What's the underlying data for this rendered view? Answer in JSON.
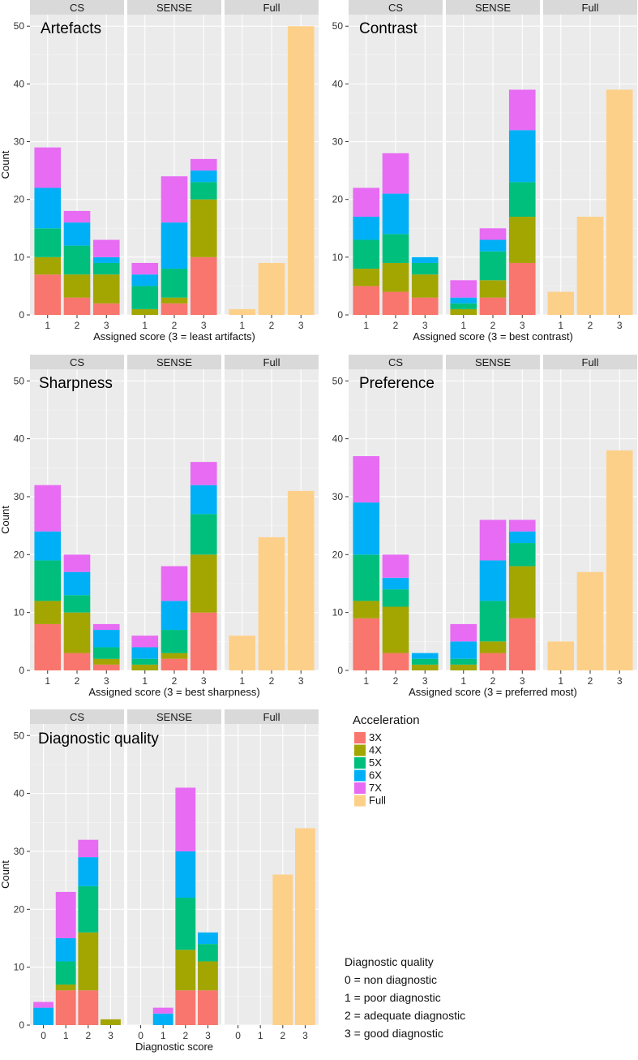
{
  "acceleration_colors": {
    "3X": "#F8766D",
    "4X": "#A3A500",
    "5X": "#00BF7D",
    "6X": "#00B0F6",
    "7X": "#E76BF3",
    "Full": "#FDD08A"
  },
  "legend": {
    "title": "Acceleration",
    "items": [
      "3X",
      "4X",
      "5X",
      "6X",
      "7X",
      "Full"
    ]
  },
  "diagnostic_note": {
    "title": "Diagnostic quality",
    "lines": [
      "0 = non diagnostic",
      "1 = poor diagnostic",
      "2 = adequate diagnostic",
      "3 = good diagnostic"
    ]
  },
  "chart_data": [
    {
      "type": "bar",
      "stacked": true,
      "title": "Artefacts",
      "xlabel": "Assigned score (3 = least artifacts)",
      "ylabel": "Count",
      "ylim": [
        0,
        52
      ],
      "yticks": [
        0,
        10,
        20,
        30,
        40,
        50
      ],
      "stack_order": [
        "3X",
        "4X",
        "5X",
        "6X",
        "7X",
        "Full"
      ],
      "facets": [
        {
          "label": "CS",
          "categories": [
            "1",
            "2",
            "3"
          ],
          "series": {
            "3X": [
              7,
              3,
              2
            ],
            "4X": [
              3,
              4,
              5
            ],
            "5X": [
              5,
              5,
              2
            ],
            "6X": [
              7,
              4,
              1
            ],
            "7X": [
              7,
              2,
              3
            ],
            "Full": [
              0,
              0,
              0
            ]
          }
        },
        {
          "label": "SENSE",
          "categories": [
            "1",
            "2",
            "3"
          ],
          "series": {
            "3X": [
              0,
              2,
              10
            ],
            "4X": [
              1,
              1,
              10
            ],
            "5X": [
              4,
              5,
              3
            ],
            "6X": [
              2,
              8,
              2
            ],
            "7X": [
              2,
              8,
              2
            ],
            "Full": [
              0,
              0,
              0
            ]
          }
        },
        {
          "label": "Full",
          "categories": [
            "1",
            "2",
            "3"
          ],
          "series": {
            "3X": [
              0,
              0,
              0
            ],
            "4X": [
              0,
              0,
              0
            ],
            "5X": [
              0,
              0,
              0
            ],
            "6X": [
              0,
              0,
              0
            ],
            "7X": [
              0,
              0,
              0
            ],
            "Full": [
              1,
              9,
              50
            ]
          }
        }
      ]
    },
    {
      "type": "bar",
      "stacked": true,
      "title": "Contrast",
      "xlabel": "Assigned score (3 = best contrast)",
      "ylabel": "",
      "ylim": [
        0,
        52
      ],
      "yticks": [
        0,
        10,
        20,
        30,
        40,
        50
      ],
      "stack_order": [
        "3X",
        "4X",
        "5X",
        "6X",
        "7X",
        "Full"
      ],
      "facets": [
        {
          "label": "CS",
          "categories": [
            "1",
            "2",
            "3"
          ],
          "series": {
            "3X": [
              5,
              4,
              3
            ],
            "4X": [
              3,
              5,
              4
            ],
            "5X": [
              5,
              5,
              2
            ],
            "6X": [
              4,
              7,
              1
            ],
            "7X": [
              5,
              7,
              0
            ],
            "Full": [
              0,
              0,
              0
            ]
          }
        },
        {
          "label": "SENSE",
          "categories": [
            "1",
            "2",
            "3"
          ],
          "series": {
            "3X": [
              0,
              3,
              9
            ],
            "4X": [
              1,
              3,
              8
            ],
            "5X": [
              1,
              5,
              6
            ],
            "6X": [
              1,
              2,
              9
            ],
            "7X": [
              3,
              2,
              7
            ],
            "Full": [
              0,
              0,
              0
            ]
          }
        },
        {
          "label": "Full",
          "categories": [
            "1",
            "2",
            "3"
          ],
          "series": {
            "3X": [
              0,
              0,
              0
            ],
            "4X": [
              0,
              0,
              0
            ],
            "5X": [
              0,
              0,
              0
            ],
            "6X": [
              0,
              0,
              0
            ],
            "7X": [
              0,
              0,
              0
            ],
            "Full": [
              4,
              17,
              39
            ]
          }
        }
      ]
    },
    {
      "type": "bar",
      "stacked": true,
      "title": "Sharpness",
      "xlabel": "Assigned score (3 = best sharpness)",
      "ylabel": "Count",
      "ylim": [
        0,
        52
      ],
      "yticks": [
        0,
        10,
        20,
        30,
        40,
        50
      ],
      "stack_order": [
        "3X",
        "4X",
        "5X",
        "6X",
        "7X",
        "Full"
      ],
      "facets": [
        {
          "label": "CS",
          "categories": [
            "1",
            "2",
            "3"
          ],
          "series": {
            "3X": [
              8,
              3,
              1
            ],
            "4X": [
              4,
              7,
              1
            ],
            "5X": [
              7,
              3,
              2
            ],
            "6X": [
              5,
              4,
              3
            ],
            "7X": [
              8,
              3,
              1
            ],
            "Full": [
              0,
              0,
              0
            ]
          }
        },
        {
          "label": "SENSE",
          "categories": [
            "1",
            "2",
            "3"
          ],
          "series": {
            "3X": [
              0,
              2,
              10
            ],
            "4X": [
              1,
              1,
              10
            ],
            "5X": [
              1,
              4,
              7
            ],
            "6X": [
              2,
              5,
              5
            ],
            "7X": [
              2,
              6,
              4
            ],
            "Full": [
              0,
              0,
              0
            ]
          }
        },
        {
          "label": "Full",
          "categories": [
            "1",
            "2",
            "3"
          ],
          "series": {
            "3X": [
              0,
              0,
              0
            ],
            "4X": [
              0,
              0,
              0
            ],
            "5X": [
              0,
              0,
              0
            ],
            "6X": [
              0,
              0,
              0
            ],
            "7X": [
              0,
              0,
              0
            ],
            "Full": [
              6,
              23,
              31
            ]
          }
        }
      ]
    },
    {
      "type": "bar",
      "stacked": true,
      "title": "Preference",
      "xlabel": "Assigned score (3 = preferred most)",
      "ylabel": "",
      "ylim": [
        0,
        52
      ],
      "yticks": [
        0,
        10,
        20,
        30,
        40,
        50
      ],
      "stack_order": [
        "3X",
        "4X",
        "5X",
        "6X",
        "7X",
        "Full"
      ],
      "facets": [
        {
          "label": "CS",
          "categories": [
            "1",
            "2",
            "3"
          ],
          "series": {
            "3X": [
              9,
              3,
              0
            ],
            "4X": [
              3,
              8,
              1
            ],
            "5X": [
              8,
              3,
              1
            ],
            "6X": [
              9,
              2,
              1
            ],
            "7X": [
              8,
              4,
              0
            ],
            "Full": [
              0,
              0,
              0
            ]
          }
        },
        {
          "label": "SENSE",
          "categories": [
            "1",
            "2",
            "3"
          ],
          "series": {
            "3X": [
              0,
              3,
              9
            ],
            "4X": [
              1,
              2,
              9
            ],
            "5X": [
              1,
              7,
              4
            ],
            "6X": [
              3,
              7,
              2
            ],
            "7X": [
              3,
              7,
              2
            ],
            "Full": [
              0,
              0,
              0
            ]
          }
        },
        {
          "label": "Full",
          "categories": [
            "1",
            "2",
            "3"
          ],
          "series": {
            "3X": [
              0,
              0,
              0
            ],
            "4X": [
              0,
              0,
              0
            ],
            "5X": [
              0,
              0,
              0
            ],
            "6X": [
              0,
              0,
              0
            ],
            "7X": [
              0,
              0,
              0
            ],
            "Full": [
              5,
              17,
              38
            ]
          }
        }
      ]
    },
    {
      "type": "bar",
      "stacked": true,
      "title": "Diagnostic quality",
      "xlabel": "Diagnostic score",
      "ylabel": "Count",
      "ylim": [
        0,
        52
      ],
      "yticks": [
        0,
        10,
        20,
        30,
        40,
        50
      ],
      "stack_order": [
        "3X",
        "4X",
        "5X",
        "6X",
        "7X",
        "Full"
      ],
      "facets": [
        {
          "label": "CS",
          "categories": [
            "0",
            "1",
            "2",
            "3"
          ],
          "series": {
            "3X": [
              0,
              6,
              6,
              0
            ],
            "4X": [
              0,
              1,
              10,
              1
            ],
            "5X": [
              0,
              4,
              8,
              0
            ],
            "6X": [
              3,
              4,
              5,
              0
            ],
            "7X": [
              1,
              8,
              3,
              0
            ],
            "Full": [
              0,
              0,
              0,
              0
            ]
          }
        },
        {
          "label": "SENSE",
          "categories": [
            "0",
            "1",
            "2",
            "3"
          ],
          "series": {
            "3X": [
              0,
              0,
              6,
              6
            ],
            "4X": [
              0,
              0,
              7,
              5
            ],
            "5X": [
              0,
              0,
              9,
              3
            ],
            "6X": [
              0,
              2,
              8,
              2
            ],
            "7X": [
              0,
              1,
              11,
              0
            ],
            "Full": [
              0,
              0,
              0,
              0
            ]
          }
        },
        {
          "label": "Full",
          "categories": [
            "0",
            "1",
            "2",
            "3"
          ],
          "series": {
            "3X": [
              0,
              0,
              0,
              0
            ],
            "4X": [
              0,
              0,
              0,
              0
            ],
            "5X": [
              0,
              0,
              0,
              0
            ],
            "6X": [
              0,
              0,
              0,
              0
            ],
            "7X": [
              0,
              0,
              0,
              0
            ],
            "Full": [
              0,
              0,
              26,
              34
            ]
          }
        }
      ]
    }
  ]
}
